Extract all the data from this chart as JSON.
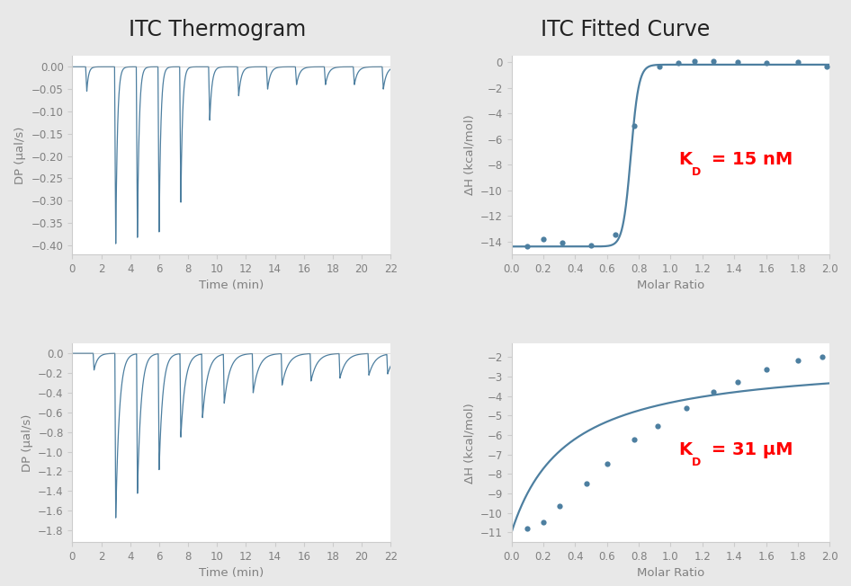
{
  "title_left": "ITC Thermogram",
  "title_right": "ITC Fitted Curve",
  "line_color": "#4d7fa0",
  "dot_color": "#4d7fa0",
  "fig_bg": "#e8e8e8",
  "panel_bg": "white",
  "kd_color": "red",
  "top_thermo": {
    "xlabel": "Time (min)",
    "ylabel": "DP (μal/s)",
    "xlim": [
      0,
      22
    ],
    "ylim": [
      -0.42,
      0.025
    ],
    "yticks": [
      0,
      -0.05,
      -0.1,
      -0.15,
      -0.2,
      -0.25,
      -0.3,
      -0.35,
      -0.4
    ],
    "xticks": [
      0,
      2,
      4,
      6,
      8,
      10,
      12,
      14,
      16,
      18,
      20,
      22
    ],
    "peak_times": [
      1.0,
      3.0,
      4.5,
      6.0,
      7.5,
      9.5,
      11.5,
      13.5,
      15.5,
      17.5,
      19.5,
      21.5
    ],
    "peak_depths": [
      -0.055,
      -0.4,
      -0.385,
      -0.37,
      -0.305,
      -0.12,
      -0.065,
      -0.05,
      -0.04,
      -0.04,
      -0.04,
      -0.05
    ],
    "peak_width": [
      0.08,
      0.08,
      0.08,
      0.08,
      0.08,
      0.08,
      0.08,
      0.08,
      0.08,
      0.08,
      0.08,
      0.08
    ],
    "recovery_tau": [
      0.12,
      0.12,
      0.12,
      0.12,
      0.12,
      0.15,
      0.18,
      0.2,
      0.22,
      0.22,
      0.22,
      0.22
    ]
  },
  "top_fit": {
    "xlabel": "Molar Ratio",
    "ylabel": "ΔH (kcal/mol)",
    "xlim": [
      0,
      2.0
    ],
    "ylim": [
      -15.0,
      0.5
    ],
    "yticks": [
      0,
      -2,
      -4,
      -6,
      -8,
      -10,
      -12,
      -14
    ],
    "xticks": [
      0,
      0.2,
      0.4,
      0.6,
      0.8,
      1.0,
      1.2,
      1.4,
      1.6,
      1.8,
      2.0
    ],
    "kd_x": 1.05,
    "kd_y": -8.0,
    "kd_label": "K",
    "kd_sub": "D",
    "kd_val": " = 15 nM",
    "data_x": [
      0.1,
      0.2,
      0.32,
      0.5,
      0.65,
      0.77,
      0.93,
      1.05,
      1.15,
      1.27,
      1.42,
      1.6,
      1.8,
      1.98
    ],
    "data_y": [
      -14.35,
      -13.85,
      -14.1,
      -14.3,
      -13.5,
      -5.0,
      -0.35,
      -0.1,
      0.05,
      0.05,
      0.0,
      -0.05,
      0.0,
      -0.35
    ],
    "inflection": 0.75,
    "dH_min": -14.4,
    "dH_max": -0.2,
    "sigmoid_k": 40
  },
  "bot_thermo": {
    "xlabel": "Time (min)",
    "ylabel": "DP (μal/s)",
    "xlim": [
      0,
      22
    ],
    "ylim": [
      -1.92,
      0.1
    ],
    "yticks": [
      0,
      -0.2,
      -0.4,
      -0.6,
      -0.8,
      -1.0,
      -1.2,
      -1.4,
      -1.6,
      -1.8
    ],
    "xticks": [
      0,
      2,
      4,
      6,
      8,
      10,
      12,
      14,
      16,
      18,
      20,
      22
    ],
    "peak_times": [
      1.5,
      3.0,
      4.5,
      6.0,
      7.5,
      9.0,
      10.5,
      12.5,
      14.5,
      16.5,
      18.5,
      20.5,
      21.8
    ],
    "peak_depths": [
      -0.17,
      -1.68,
      -1.43,
      -1.18,
      -0.85,
      -0.65,
      -0.5,
      -0.4,
      -0.32,
      -0.28,
      -0.25,
      -0.22,
      -0.2
    ],
    "peak_width": [
      0.06,
      0.06,
      0.06,
      0.06,
      0.06,
      0.06,
      0.06,
      0.06,
      0.06,
      0.06,
      0.06,
      0.06,
      0.06
    ],
    "recovery_tau": [
      0.25,
      0.25,
      0.25,
      0.25,
      0.3,
      0.35,
      0.38,
      0.4,
      0.42,
      0.42,
      0.42,
      0.42,
      0.42
    ]
  },
  "bot_fit": {
    "xlabel": "Molar Ratio",
    "ylabel": "ΔH (kcal/mol)",
    "xlim": [
      0,
      2.0
    ],
    "ylim": [
      -11.5,
      -1.3
    ],
    "yticks": [
      -2,
      -3,
      -4,
      -5,
      -6,
      -7,
      -8,
      -9,
      -10,
      -11
    ],
    "xticks": [
      0,
      0.2,
      0.4,
      0.6,
      0.8,
      1.0,
      1.2,
      1.4,
      1.6,
      1.8,
      2.0
    ],
    "kd_x": 1.05,
    "kd_y": -7.0,
    "kd_label": "K",
    "kd_sub": "D",
    "kd_val": " = 31 μM",
    "data_x": [
      0.1,
      0.2,
      0.3,
      0.47,
      0.6,
      0.77,
      0.92,
      1.1,
      1.27,
      1.42,
      1.6,
      1.8,
      1.95
    ],
    "data_y": [
      -10.78,
      -10.5,
      -9.65,
      -8.5,
      -7.48,
      -6.25,
      -5.55,
      -4.6,
      -3.77,
      -3.28,
      -2.62,
      -2.18,
      -1.98
    ],
    "dH_min": -11.0,
    "dH_max": -2.0,
    "KD_ratio": 0.35
  }
}
